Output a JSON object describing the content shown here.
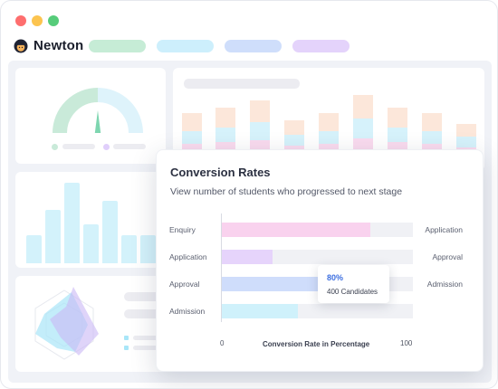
{
  "window": {
    "controls": [
      {
        "name": "close",
        "color": "#fe6e6e"
      },
      {
        "name": "minimize",
        "color": "#fcc44f"
      },
      {
        "name": "maximize",
        "color": "#56cc7a"
      }
    ]
  },
  "header": {
    "brand": "Newton",
    "logo_icon": "newton-logo-icon",
    "nav_pill_colors": [
      "#c6ecd6",
      "#cdeffc",
      "#cfdefb",
      "#e4d3fb"
    ]
  },
  "colors": {
    "background": "#f0f2f7",
    "card": "#ffffff",
    "gauge_green": "#c9ead9",
    "gauge_blue": "#def3fb",
    "needle": "#7ed6b0",
    "bar_light_blue": "#d3f2fb",
    "stack_peach": "#fce7da",
    "stack_cyan": "#d6f2fb",
    "stack_pink": "#fadbef",
    "radar_cyan": "#a9e6f8",
    "radar_purple": "#c9b7f5"
  },
  "panel": {
    "title": "Conversion Rates",
    "subtitle": "View number of students who progressed to next stage",
    "tooltip": {
      "value": "80%",
      "text": "400 Candidates"
    }
  },
  "chart_data": {
    "type": "bar",
    "orientation": "horizontal",
    "title": "Conversion Rates",
    "xlabel": "Conversion Rate in Percentage",
    "xlim": [
      0,
      100
    ],
    "x_ticks": [
      "0",
      "100"
    ],
    "categories": [
      "Enquiry",
      "Application",
      "Approval",
      "Admission"
    ],
    "next_stage_labels": [
      "Application",
      "Approval",
      "Admission",
      ""
    ],
    "values": [
      78,
      27,
      80,
      40
    ],
    "colors": [
      "#f9d2ee",
      "#e6d4fb",
      "#cfddfb",
      "#cff1fb"
    ]
  }
}
